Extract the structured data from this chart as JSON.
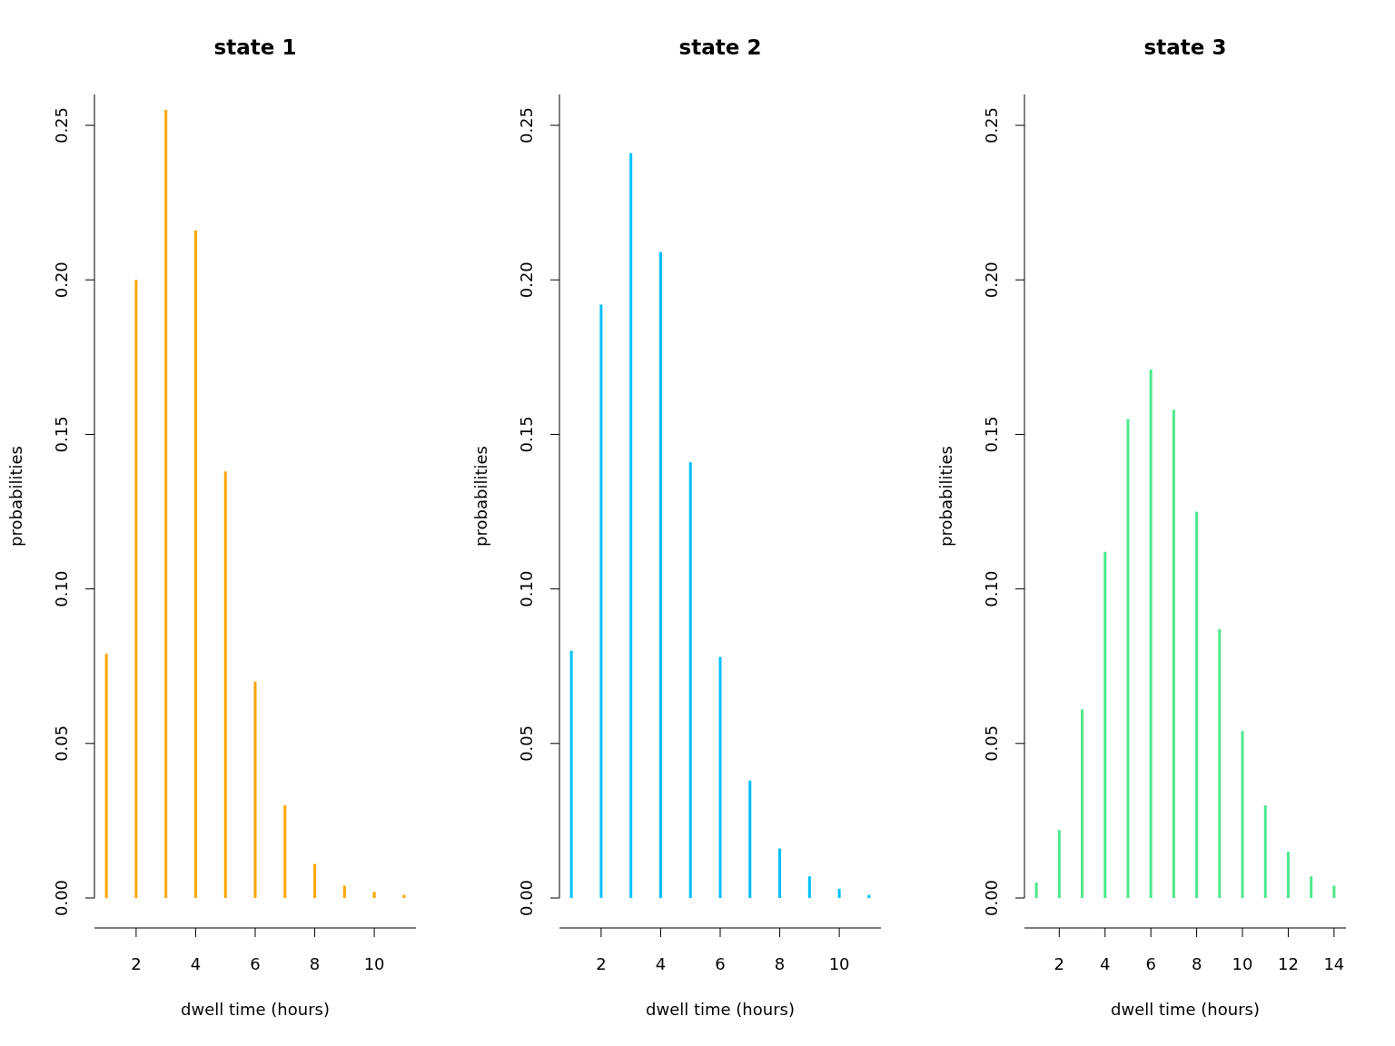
{
  "chart_data": [
    {
      "type": "bar",
      "title": "state 1",
      "xlabel": "dwell time (hours)",
      "ylabel": "probabilities",
      "x": [
        1,
        2,
        3,
        4,
        5,
        6,
        7,
        8,
        9,
        10,
        11
      ],
      "values": [
        0.079,
        0.2,
        0.255,
        0.216,
        0.138,
        0.07,
        0.03,
        0.011,
        0.004,
        0.002,
        0.001
      ],
      "color": "#ffa500",
      "xlim": [
        0.6,
        11.4
      ],
      "xticks": [
        2,
        4,
        6,
        8,
        10
      ],
      "ylim": [
        0,
        0.26
      ],
      "yticks": [
        {
          "value": 0,
          "label": "0.00"
        },
        {
          "value": 0.05,
          "label": "0.05"
        },
        {
          "value": 0.1,
          "label": "0.10"
        },
        {
          "value": 0.15,
          "label": "0.15"
        },
        {
          "value": 0.2,
          "label": "0.20"
        },
        {
          "value": 0.25,
          "label": "0.25"
        }
      ]
    },
    {
      "type": "bar",
      "title": "state 2",
      "xlabel": "dwell time (hours)",
      "ylabel": "probabilities",
      "x": [
        1,
        2,
        3,
        4,
        5,
        6,
        7,
        8,
        9,
        10,
        11
      ],
      "values": [
        0.08,
        0.192,
        0.241,
        0.209,
        0.141,
        0.078,
        0.038,
        0.016,
        0.007,
        0.003,
        0.001
      ],
      "color": "#00bfff",
      "xlim": [
        0.6,
        11.4
      ],
      "xticks": [
        2,
        4,
        6,
        8,
        10
      ],
      "ylim": [
        0,
        0.26
      ],
      "yticks": [
        {
          "value": 0,
          "label": "0.00"
        },
        {
          "value": 0.05,
          "label": "0.05"
        },
        {
          "value": 0.1,
          "label": "0.10"
        },
        {
          "value": 0.15,
          "label": "0.15"
        },
        {
          "value": 0.2,
          "label": "0.20"
        },
        {
          "value": 0.25,
          "label": "0.25"
        }
      ]
    },
    {
      "type": "bar",
      "title": "state 3",
      "xlabel": "dwell time (hours)",
      "ylabel": "probabilities",
      "x": [
        1,
        2,
        3,
        4,
        5,
        6,
        7,
        8,
        9,
        10,
        11,
        12,
        13,
        14
      ],
      "values": [
        0.005,
        0.022,
        0.061,
        0.112,
        0.155,
        0.171,
        0.158,
        0.125,
        0.087,
        0.054,
        0.03,
        0.015,
        0.007,
        0.004
      ],
      "color": "#4ee88c",
      "xlim": [
        0.48,
        14.52
      ],
      "xticks": [
        2,
        4,
        6,
        8,
        10,
        12,
        14
      ],
      "ylim": [
        0,
        0.26
      ],
      "yticks": [
        {
          "value": 0,
          "label": "0.00"
        },
        {
          "value": 0.05,
          "label": "0.05"
        },
        {
          "value": 0.1,
          "label": "0.10"
        },
        {
          "value": 0.15,
          "label": "0.15"
        },
        {
          "value": 0.2,
          "label": "0.20"
        },
        {
          "value": 0.25,
          "label": "0.25"
        }
      ]
    }
  ]
}
